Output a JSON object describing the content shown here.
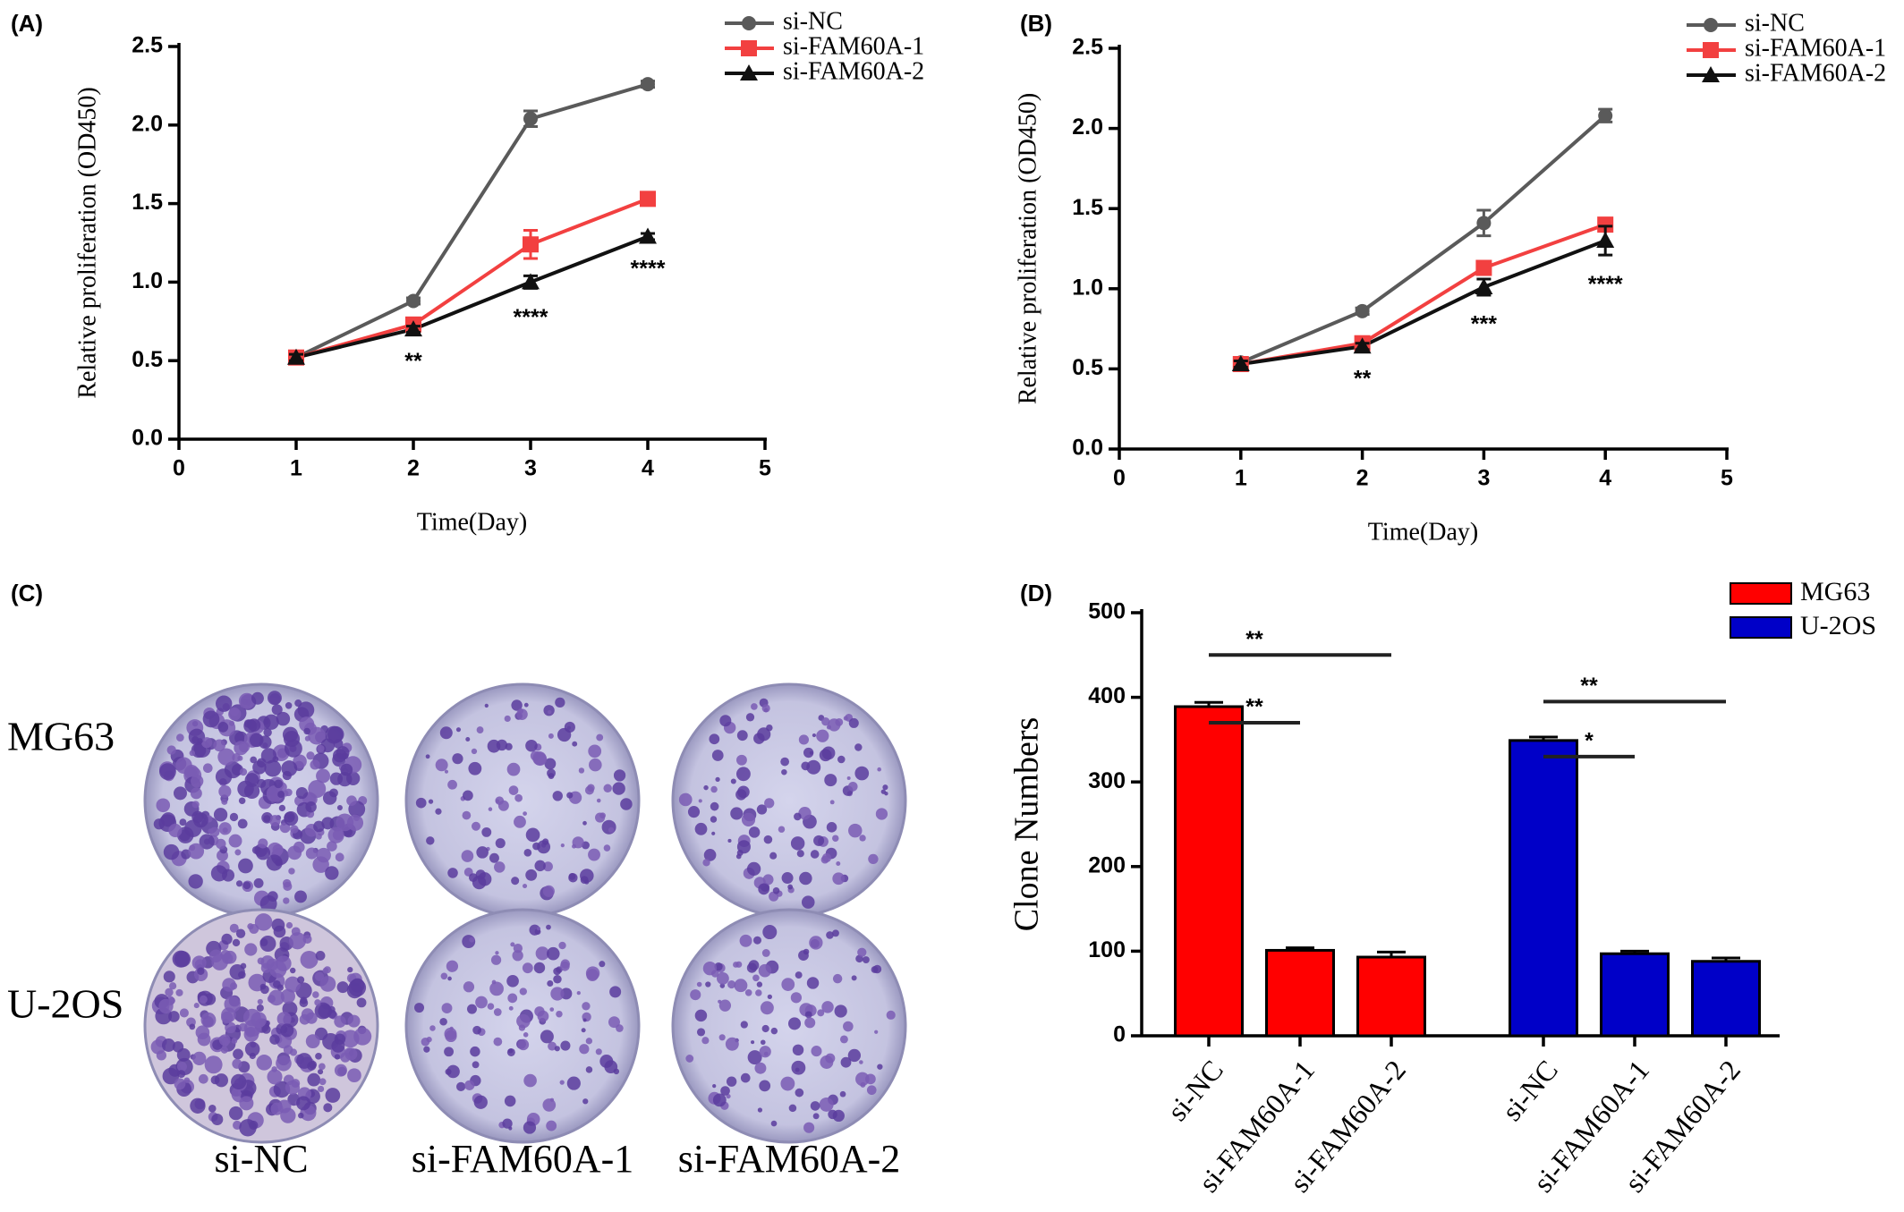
{
  "chart_data": [
    {
      "type": "line",
      "panel_label": "(A)",
      "x_label": "Time(Day)",
      "y_label": "Relative proliferation (OD450)",
      "x": [
        1,
        2,
        3,
        4
      ],
      "xlim": [
        0,
        5
      ],
      "xticks": [
        0,
        1,
        2,
        3,
        4,
        5
      ],
      "ylim": [
        0,
        2.5
      ],
      "yticks": [
        {
          "value": 0,
          "label": "0.0"
        },
        0.5,
        {
          "value": 1,
          "label": "1.0"
        },
        1.5,
        {
          "value": 2,
          "label": "2.0"
        },
        2.5
      ],
      "legend": "upper right",
      "series": [
        {
          "name": "si-NC",
          "color": "#5a5a5a",
          "marker": "circle",
          "values": [
            0.52,
            0.88,
            2.04,
            2.26
          ],
          "errors": [
            0.02,
            0.02,
            0.05,
            0.02
          ]
        },
        {
          "name": "si-FAM60A-1",
          "color": "#f24040",
          "marker": "square",
          "values": [
            0.52,
            0.73,
            1.24,
            1.53
          ],
          "errors": [
            0.02,
            0.03,
            0.09,
            0.03
          ]
        },
        {
          "name": "si-FAM60A-2",
          "color": "#111111",
          "marker": "triangle",
          "values": [
            0.52,
            0.7,
            1.0,
            1.29
          ],
          "errors": [
            0.02,
            0.02,
            0.04,
            0.02
          ]
        }
      ],
      "annotations": [
        {
          "text": "**",
          "x": 2
        },
        {
          "text": "****",
          "x": 3
        },
        {
          "text": "****",
          "x": 4
        }
      ]
    },
    {
      "type": "line",
      "panel_label": "(B)",
      "x_label": "Time(Day)",
      "y_label": "Relative proliferation (OD450)",
      "x": [
        1,
        2,
        3,
        4
      ],
      "xlim": [
        0,
        5
      ],
      "xticks": [
        0,
        1,
        2,
        3,
        4,
        5
      ],
      "ylim": [
        0,
        2.5
      ],
      "yticks": [
        {
          "value": 0,
          "label": "0.0"
        },
        0.5,
        {
          "value": 1,
          "label": "1.0"
        },
        1.5,
        {
          "value": 2,
          "label": "2.0"
        },
        2.5
      ],
      "legend": "upper right",
      "series": [
        {
          "name": "si-NC",
          "color": "#5a5a5a",
          "marker": "circle",
          "values": [
            0.54,
            0.86,
            1.41,
            2.08
          ],
          "errors": [
            0.02,
            0.02,
            0.08,
            0.04
          ]
        },
        {
          "name": "si-FAM60A-1",
          "color": "#f24040",
          "marker": "square",
          "values": [
            0.53,
            0.66,
            1.13,
            1.4
          ],
          "errors": [
            0.02,
            0.02,
            0.04,
            0.02
          ]
        },
        {
          "name": "si-FAM60A-2",
          "color": "#111111",
          "marker": "triangle",
          "values": [
            0.53,
            0.64,
            1.01,
            1.3
          ],
          "errors": [
            0.02,
            0.02,
            0.05,
            0.09
          ]
        }
      ],
      "annotations": [
        {
          "text": "**",
          "x": 2
        },
        {
          "text": "***",
          "x": 3
        },
        {
          "text": "****",
          "x": 4
        }
      ]
    },
    {
      "type": "bar",
      "panel_label": "(D)",
      "y_label": "Clone Numbers",
      "categories": [
        "si-NC",
        "si-FAM60A-1",
        "si-FAM60A-2",
        "si-NC",
        "si-FAM60A-1",
        "si-FAM60A-2"
      ],
      "ylim": [
        0,
        500
      ],
      "yticks": [
        0,
        100,
        200,
        300,
        400,
        500
      ],
      "legend": "upper right",
      "series": [
        {
          "name": "MG63",
          "color": "#ff0000",
          "values": [
            389,
            101,
            93,
            null,
            null,
            null
          ],
          "errors": [
            5,
            3,
            6,
            null,
            null,
            null
          ]
        },
        {
          "name": "U-2OS",
          "color": "#0000c8",
          "values": [
            null,
            null,
            null,
            349,
            97,
            88
          ],
          "errors": [
            null,
            null,
            null,
            4,
            3,
            4
          ]
        }
      ],
      "significance": [
        {
          "text": "**",
          "from": 0,
          "to": 1,
          "y": 370
        },
        {
          "text": "**",
          "from": 0,
          "to": 2,
          "y": 450
        },
        {
          "text": "*",
          "from": 3,
          "to": 4,
          "y": 330
        },
        {
          "text": "**",
          "from": 3,
          "to": 5,
          "y": 395
        }
      ]
    }
  ],
  "panel_c": {
    "label": "(C)",
    "rows": [
      "MG63",
      "U-2OS"
    ],
    "columns": [
      "si-NC",
      "si-FAM60A-1",
      "si-FAM60A-2"
    ]
  }
}
